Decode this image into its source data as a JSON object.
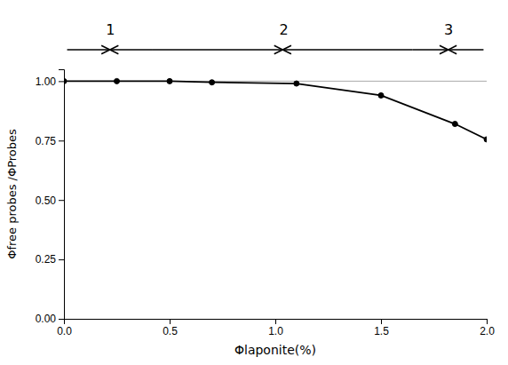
{
  "chart_data": {
    "type": "line",
    "x": [
      0.0,
      0.25,
      0.5,
      0.7,
      1.1,
      1.5,
      1.85,
      2.0
    ],
    "values": [
      1.0,
      1.0,
      1.0,
      0.995,
      0.99,
      0.94,
      0.82,
      0.755
    ],
    "color": "#000000",
    "marker": "circle",
    "xlim": [
      0,
      2
    ],
    "ylim": [
      0,
      1.05
    ],
    "xticks": [
      {
        "value": 0,
        "label": "0.0"
      },
      0.5,
      {
        "value": 1.0,
        "label": "1.0"
      },
      1.5,
      {
        "value": 2.0,
        "label": "2.0"
      }
    ],
    "yticks": [
      {
        "value": 0,
        "label": "0.00"
      },
      0.25,
      {
        "value": 0.5,
        "label": "0.50"
      },
      0.75,
      {
        "value": 1.0,
        "label": "1.00"
      }
    ],
    "xlabel": "Φlaponite(%)",
    "ylabel": "Φfree probes /ΦProbes",
    "reference_line": 1.0,
    "annotations": [
      {
        "text": "1",
        "x": 0.22,
        "x_range": [
          0.015,
          0.42
        ]
      },
      {
        "text": "2",
        "x": 1.04,
        "x_range": [
          0.42,
          1.65
        ]
      },
      {
        "text": "3",
        "x": 1.82,
        "x_range": [
          1.65,
          1.985
        ]
      }
    ]
  }
}
